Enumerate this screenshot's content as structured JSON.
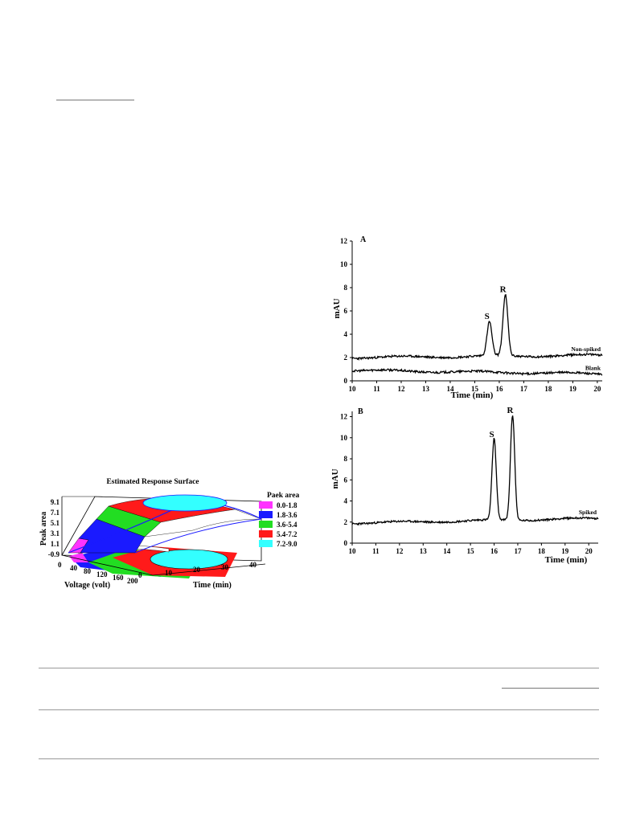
{
  "chart_data": [
    {
      "type": "surface",
      "title": "Estimated Response Surface",
      "zlabel": "Peak area",
      "xlabel": "Voltage (volt)",
      "ylabel": "Time (min)",
      "z_ticks": [
        "9.1",
        "7.1",
        "5.1",
        "3.1",
        "1.1",
        "-0.9"
      ],
      "x_ticks": [
        "0",
        "40",
        "80",
        "120",
        "160",
        "200"
      ],
      "y_ticks": [
        "0",
        "10",
        "20",
        "30",
        "40"
      ],
      "zlim": [
        -0.9,
        9.1
      ],
      "xlim": [
        0,
        200
      ],
      "ylim": [
        0,
        40
      ],
      "legend": {
        "title": "Paek area",
        "position": "right",
        "entries": [
          {
            "label": "0.0-1.8",
            "color": "#ff33ff"
          },
          {
            "label": "1.8-3.6",
            "color": "#1a1aff"
          },
          {
            "label": "3.6-5.4",
            "color": "#22dd22"
          },
          {
            "label": "5.4-7.2",
            "color": "#ff1a1a"
          },
          {
            "label": "7.2-9.0",
            "color": "#33ffff"
          }
        ]
      }
    },
    {
      "type": "line",
      "panel": "A",
      "xlabel": "Time (min)",
      "ylabel": "mAU",
      "xlim": [
        10,
        20.2
      ],
      "ylim": [
        0,
        12
      ],
      "x_ticks": [
        "10",
        "11",
        "12",
        "13",
        "14",
        "15",
        "16",
        "17",
        "18",
        "19",
        "20"
      ],
      "y_ticks": [
        "0",
        "2",
        "4",
        "6",
        "8",
        "10",
        "12"
      ],
      "series": [
        {
          "name": "Non-spiked",
          "baseline": 2.0,
          "baseline_end": 2.2,
          "peaks": [
            {
              "label": "S",
              "x": 15.6,
              "y": 4.9,
              "width": 0.1
            },
            {
              "label": "R",
              "x": 16.25,
              "y": 7.2,
              "width": 0.1
            }
          ]
        },
        {
          "name": "Blank",
          "baseline": 0.9,
          "baseline_end": 0.6,
          "peaks": []
        }
      ]
    },
    {
      "type": "line",
      "panel": "B",
      "xlabel": "Time (min)",
      "ylabel": "mAU",
      "xlim": [
        10,
        20.4
      ],
      "ylim": [
        0,
        12.5
      ],
      "x_ticks": [
        "10",
        "11",
        "12",
        "13",
        "14",
        "15",
        "16",
        "17",
        "18",
        "19",
        "20"
      ],
      "y_ticks": [
        "0",
        "2",
        "4",
        "6",
        "8",
        "10",
        "12"
      ],
      "series": [
        {
          "name": "Spiked",
          "baseline": 1.9,
          "baseline_end": 2.35,
          "peaks": [
            {
              "label": "S",
              "x": 16.0,
              "y": 9.6,
              "width": 0.09
            },
            {
              "label": "R",
              "x": 16.78,
              "y": 11.9,
              "width": 0.09
            }
          ]
        }
      ]
    }
  ]
}
